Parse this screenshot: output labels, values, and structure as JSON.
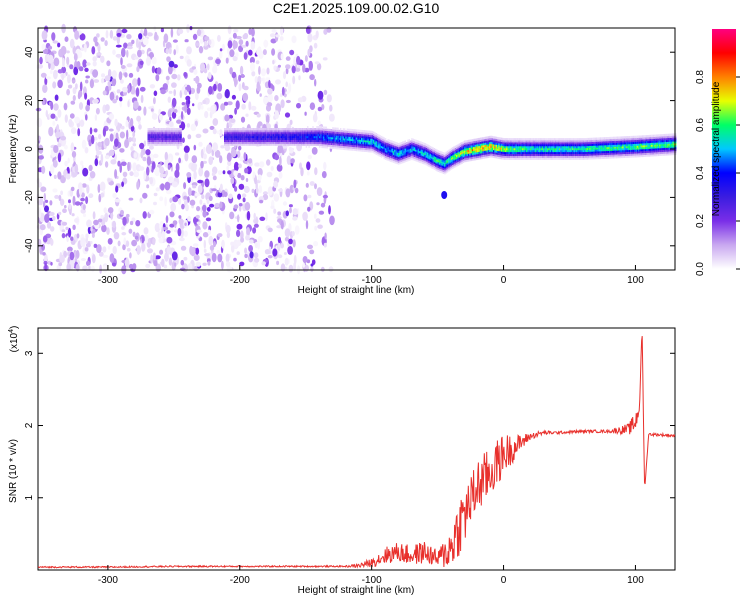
{
  "title": "C2E1.2025.109.00.02.G10",
  "chart_data": [
    {
      "type": "heatmap",
      "xlabel": "Height of straight line (km)",
      "ylabel": "Frequency (Hz)",
      "xlim": [
        -353,
        130
      ],
      "ylim": [
        -50,
        50
      ],
      "xticks": [
        -300,
        -200,
        -100,
        0,
        100
      ],
      "xticklabels": [
        "-300",
        "-200",
        "-100",
        "0",
        "100"
      ],
      "yticks": [
        -40,
        -20,
        0,
        20,
        40
      ],
      "yticklabels": [
        "-40",
        "-20",
        "0",
        "20",
        "40"
      ],
      "colorbar": {
        "label": "Normalized spectral amplitude",
        "range": [
          0,
          1
        ],
        "ticks": [
          0,
          0.2,
          0.4,
          0.6,
          0.8
        ],
        "ticklabels": [
          "0.0",
          "0.2",
          "0.4",
          "0.6",
          "0.8"
        ],
        "colors": [
          "#ffffff",
          "#c9a8f0",
          "#7a2ee8",
          "#3b1de0",
          "#0000ff",
          "#00c8ff",
          "#00ff66",
          "#e8ff00",
          "#ff8000",
          "#ff0000",
          "#ff0080"
        ]
      },
      "noise_region": {
        "x": [
          -353,
          -130
        ],
        "y": [
          -50,
          50
        ],
        "level": [
          0.0,
          0.25
        ]
      },
      "ridge": {
        "x": [
          -270,
          -250,
          -210,
          -160,
          -140,
          -120,
          -100,
          -90,
          -80,
          -70,
          -60,
          -50,
          -45,
          -40,
          -30,
          -20,
          -10,
          0,
          20,
          60,
          100,
          130
        ],
        "y": [
          5,
          5,
          5,
          5,
          5,
          4,
          3,
          0,
          -2,
          0,
          -2,
          -5,
          -6,
          -4,
          -1,
          0,
          1,
          0,
          0,
          0,
          1,
          2
        ],
        "amplitude": [
          0.3,
          0.3,
          0.35,
          0.4,
          0.5,
          0.55,
          0.6,
          0.55,
          0.6,
          0.55,
          0.6,
          0.65,
          0.6,
          0.7,
          0.8,
          0.9,
          0.85,
          0.75,
          0.65,
          0.65,
          0.7,
          0.7
        ]
      },
      "annotations": [
        {
          "x": -45,
          "y": -19,
          "amplitude": 0.35
        }
      ]
    },
    {
      "type": "line",
      "xlabel": "Height of straight line (km)",
      "ylabel": "SNR (10 * v/v)",
      "yscale_label": "(x10",
      "yscale_exponent": "4",
      "yscale_suffix": ")",
      "xlim": [
        -353,
        130
      ],
      "ylim": [
        0,
        3.35
      ],
      "xticks": [
        -300,
        -200,
        -100,
        0,
        100
      ],
      "xticklabels": [
        "-300",
        "-200",
        "-100",
        "0",
        "100"
      ],
      "yticks": [
        1,
        2,
        3
      ],
      "yticklabels": [
        "1",
        "2",
        "3"
      ],
      "series": [
        {
          "color": "#e8302c",
          "x": [
            -353,
            -300,
            -250,
            -200,
            -150,
            -120,
            -110,
            -100,
            -90,
            -80,
            -70,
            -60,
            -50,
            -40,
            -35,
            -30,
            -25,
            -20,
            -10,
            0,
            10,
            20,
            30,
            40,
            60,
            80,
            95,
            100,
            103,
            105,
            107,
            110,
            120,
            130
          ],
          "y": [
            0.04,
            0.04,
            0.05,
            0.05,
            0.05,
            0.05,
            0.06,
            0.1,
            0.2,
            0.25,
            0.2,
            0.25,
            0.15,
            0.3,
            0.55,
            0.75,
            0.95,
            1.15,
            1.35,
            1.6,
            1.72,
            1.85,
            1.9,
            1.9,
            1.92,
            1.92,
            1.95,
            2.05,
            2.25,
            3.35,
            1.1,
            1.88,
            1.87,
            1.86
          ],
          "noise": [
            0.01,
            0.01,
            0.01,
            0.01,
            0.01,
            0.01,
            0.03,
            0.06,
            0.12,
            0.14,
            0.14,
            0.16,
            0.12,
            0.3,
            0.4,
            0.45,
            0.35,
            0.4,
            0.35,
            0.3,
            0.15,
            0.05,
            0.03,
            0.02,
            0.02,
            0.02,
            0.08,
            0.15,
            0.1,
            0.0,
            0.0,
            0.02,
            0.02,
            0.02
          ]
        }
      ]
    }
  ]
}
